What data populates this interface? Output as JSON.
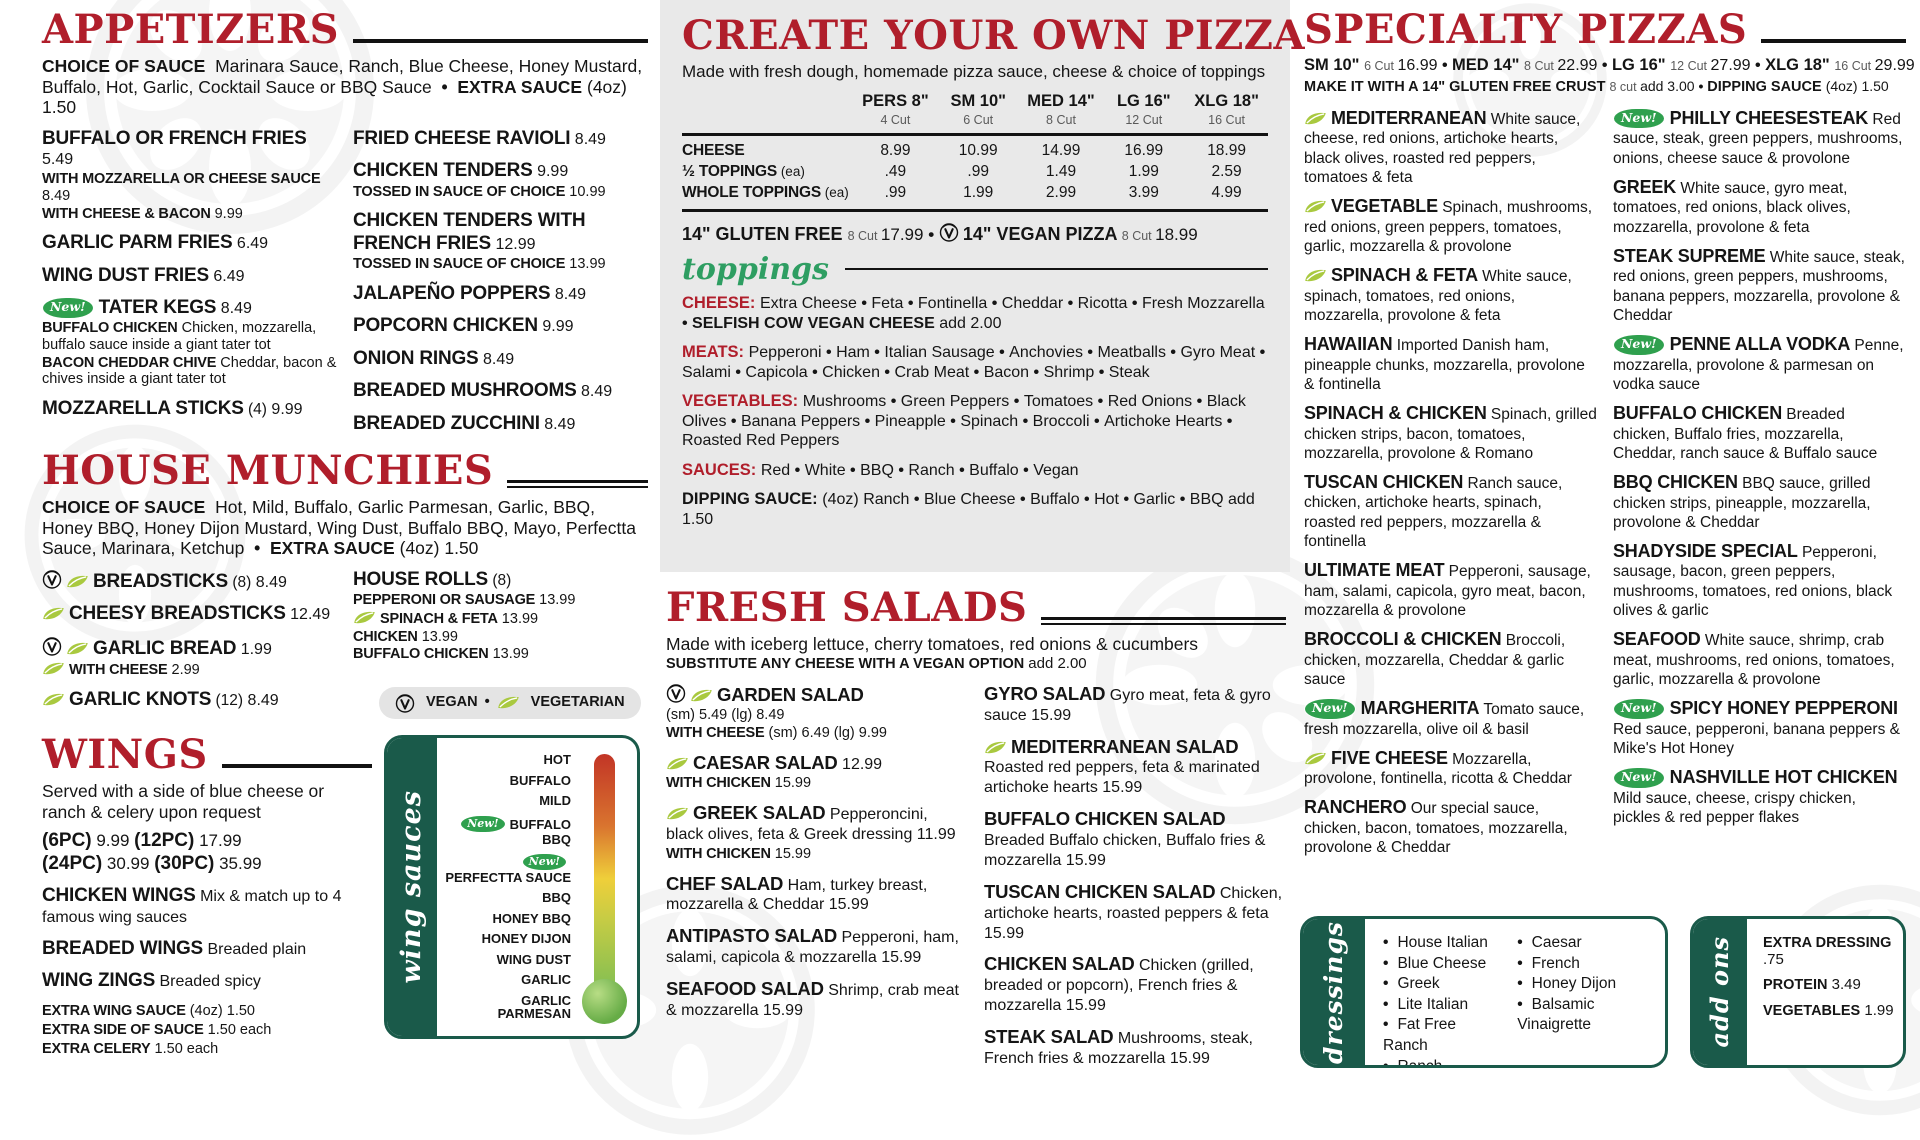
{
  "glyphs": {
    "bullet": "•"
  },
  "colors": {
    "accent_red": "#B01E2B",
    "dark_green": "#1A5A4A",
    "new_badge_green": "#2FA04E",
    "leaf_green": "#A9C93F",
    "panel_gray": "#E9E9E9"
  },
  "badges": {
    "new": "New!"
  },
  "legend": {
    "vegan": "VEGAN",
    "vegetarian": "VEGETARIAN"
  },
  "appetizers": {
    "title": "APPETIZERS",
    "note": {
      "label": "CHOICE OF SAUCE",
      "text": "Marinara Sauce, Ranch, Blue Cheese, Honey Mustard, Buffalo, Hot, Garlic, Cocktail Sauce or BBQ Sauce",
      "extra_label": "EXTRA SAUCE",
      "extra_text": "(4oz) 1.50"
    },
    "col1": [
      {
        "name": "BUFFALO OR FRENCH FRIES",
        "price": "5.49",
        "subs": [
          {
            "label": "WITH MOZZARELLA OR CHEESE SAUCE",
            "text": "8.49"
          },
          {
            "label": "WITH CHEESE & BACON",
            "text": "9.99"
          }
        ]
      },
      {
        "name": "GARLIC PARM FRIES",
        "price": "6.49"
      },
      {
        "name": "WING DUST FRIES",
        "price": "6.49"
      },
      {
        "badges": [
          "new"
        ],
        "name": "TATER KEGS",
        "price": "8.49",
        "subs": [
          {
            "label": "BUFFALO CHICKEN",
            "text": "Chicken, mozzarella, buffalo sauce inside a giant tater tot"
          },
          {
            "label": "BACON CHEDDAR CHIVE",
            "text": "Cheddar, bacon & chives inside a giant tater tot"
          }
        ]
      },
      {
        "name": "MOZZARELLA STICKS",
        "qty": "(4)",
        "price": "9.99"
      }
    ],
    "col2": [
      {
        "name": "FRIED CHEESE RAVIOLI",
        "price": "8.49"
      },
      {
        "name": "CHICKEN TENDERS",
        "price": "9.99",
        "subs": [
          {
            "label": "TOSSED IN SAUCE OF CHOICE",
            "text": "10.99"
          }
        ]
      },
      {
        "name": "CHICKEN TENDERS WITH FRENCH FRIES",
        "price": "12.99",
        "subs": [
          {
            "label": "TOSSED IN SAUCE OF CHOICE",
            "text": "13.99"
          }
        ]
      },
      {
        "name": "JALAPEÑO POPPERS",
        "price": "8.49"
      },
      {
        "name": "POPCORN CHICKEN",
        "price": "9.99"
      },
      {
        "name": "ONION RINGS",
        "price": "8.49"
      },
      {
        "name": "BREADED MUSHROOMS",
        "price": "8.49"
      },
      {
        "name": "BREADED ZUCCHINI",
        "price": "8.49"
      }
    ]
  },
  "house_munchies": {
    "title": "HOUSE MUNCHIES",
    "note": {
      "label": "CHOICE OF SAUCE",
      "text": "Hot, Mild, Buffalo, Garlic Parmesan, Garlic, BBQ, Honey BBQ, Honey Dijon Mustard, Wing Dust, Buffalo BBQ, Mayo, Perfectta Sauce, Marinara, Ketchup",
      "extra_label": "EXTRA SAUCE",
      "extra_text": "(4oz) 1.50"
    },
    "col1": [
      {
        "badges": [
          "vegan",
          "leaf"
        ],
        "name": "BREADSTICKS",
        "qty": "(8)",
        "price": "8.49"
      },
      {
        "badges": [
          "leaf"
        ],
        "name": "CHEESY BREADSTICKS",
        "price": "12.49"
      },
      {
        "badges": [
          "vegan",
          "leaf"
        ],
        "name": "GARLIC BREAD",
        "price": "1.99",
        "subs": [
          {
            "badges": [
              "leaf"
            ],
            "label": "WITH CHEESE",
            "text": "2.99"
          }
        ]
      },
      {
        "badges": [
          "leaf"
        ],
        "name": "GARLIC KNOTS",
        "qty": "(12)",
        "price": "8.49"
      }
    ],
    "col2": [
      {
        "name": "HOUSE ROLLS",
        "qty": "(8)",
        "subs": [
          {
            "label": "PEPPERONI OR SAUSAGE",
            "text": "13.99"
          },
          {
            "badges": [
              "leaf"
            ],
            "label": "SPINACH & FETA",
            "text": "13.99"
          },
          {
            "label": "CHICKEN",
            "text": "13.99"
          },
          {
            "label": "BUFFALO CHICKEN",
            "text": "13.99"
          }
        ]
      }
    ]
  },
  "wings": {
    "title": "WINGS",
    "note": "Served with a side of blue cheese or ranch & celery upon request",
    "pieces": [
      {
        "label": "(6PC)",
        "price": "9.99"
      },
      {
        "label": "(12PC)",
        "price": "17.99"
      },
      {
        "label": "(24PC)",
        "price": "30.99"
      },
      {
        "label": "(30PC)",
        "price": "35.99"
      }
    ],
    "items": [
      {
        "name": "CHICKEN WINGS",
        "desc": "Mix & match up to 4 famous wing sauces"
      },
      {
        "name": "BREADED WINGS",
        "desc": "Breaded plain"
      },
      {
        "name": "WING ZINGS",
        "desc": "Breaded spicy"
      }
    ],
    "extras": [
      {
        "label": "EXTRA WING SAUCE",
        "text": "(4oz) 1.50"
      },
      {
        "label": "EXTRA SIDE OF SAUCE",
        "text": "1.50 each"
      },
      {
        "label": "EXTRA CELERY",
        "text": "1.50 each"
      }
    ]
  },
  "wing_sauces": {
    "title": "wing sauces",
    "sauces": [
      {
        "name": "HOT"
      },
      {
        "name": "BUFFALO"
      },
      {
        "name": "MILD"
      },
      {
        "name": "BUFFALO BBQ",
        "new": true
      },
      {
        "name": "PERFECTTA SAUCE",
        "new": true
      },
      {
        "name": "BBQ"
      },
      {
        "name": "HONEY BBQ"
      },
      {
        "name": "HONEY DIJON"
      },
      {
        "name": "WING DUST"
      },
      {
        "name": "GARLIC"
      },
      {
        "name": "GARLIC PARMESAN"
      }
    ]
  },
  "pizza": {
    "title": "CREATE YOUR OWN PIZZA",
    "subtitle": "Made with fresh dough, homemade pizza sauce, cheese & choice of toppings",
    "table": {
      "columns": [
        {
          "size": "PERS 8\"",
          "cut": "4 Cut"
        },
        {
          "size": "SM 10\"",
          "cut": "6 Cut"
        },
        {
          "size": "MED 14\"",
          "cut": "8 Cut"
        },
        {
          "size": "LG 16\"",
          "cut": "12 Cut"
        },
        {
          "size": "XLG 18\"",
          "cut": "16 Cut"
        }
      ],
      "rows": [
        {
          "label": "CHEESE",
          "suffix": "",
          "values": [
            "8.99",
            "10.99",
            "14.99",
            "16.99",
            "18.99"
          ]
        },
        {
          "label": "½ TOPPINGS",
          "suffix": "(ea)",
          "values": [
            ".49",
            ".99",
            "1.49",
            "1.99",
            "2.59"
          ]
        },
        {
          "label": "WHOLE TOPPINGS",
          "suffix": "(ea)",
          "values": [
            ".99",
            "1.99",
            "2.99",
            "3.99",
            "4.99"
          ]
        }
      ]
    },
    "special_line": [
      {
        "name": "14\" GLUTEN FREE",
        "cut": "8 Cut",
        "price": "17.99"
      },
      {
        "vegan": true,
        "name": "14\" VEGAN PIZZA",
        "cut": "8 Cut",
        "price": "18.99"
      }
    ],
    "toppings_title": "toppings",
    "topping_groups": [
      {
        "label": "CHEESE:",
        "color": "red",
        "items": [
          {
            "t": "Extra Cheese"
          },
          {
            "t": "Feta"
          },
          {
            "t": "Fontinella"
          },
          {
            "t": "Cheddar"
          },
          {
            "t": "Ricotta"
          },
          {
            "t": "Fresh Mozzarella"
          },
          {
            "t": "SELFISH COW VEGAN CHEESE",
            "b": true,
            "suffix": "add 2.00"
          }
        ]
      },
      {
        "label": "MEATS:",
        "color": "red",
        "items": [
          {
            "t": "Pepperoni"
          },
          {
            "t": "Ham"
          },
          {
            "t": "Italian Sausage"
          },
          {
            "t": "Anchovies"
          },
          {
            "t": "Meatballs"
          },
          {
            "t": "Gyro Meat"
          },
          {
            "t": "Salami"
          },
          {
            "t": "Capicola"
          },
          {
            "t": "Chicken"
          },
          {
            "t": "Crab Meat"
          },
          {
            "t": "Bacon"
          },
          {
            "t": "Shrimp"
          },
          {
            "t": "Steak"
          }
        ]
      },
      {
        "label": "VEGETABLES:",
        "color": "red",
        "items": [
          {
            "t": "Mushrooms"
          },
          {
            "t": "Green Peppers"
          },
          {
            "t": "Tomatoes"
          },
          {
            "t": "Red Onions"
          },
          {
            "t": "Black Olives"
          },
          {
            "t": "Banana Peppers"
          },
          {
            "t": "Pineapple"
          },
          {
            "t": "Spinach"
          },
          {
            "t": "Broccoli"
          },
          {
            "t": "Artichoke Hearts"
          },
          {
            "t": "Roasted Red Peppers"
          }
        ]
      },
      {
        "label": "SAUCES:",
        "color": "red",
        "items": [
          {
            "t": "Red"
          },
          {
            "t": "White"
          },
          {
            "t": "BBQ"
          },
          {
            "t": "Ranch"
          },
          {
            "t": "Buffalo"
          },
          {
            "t": "Vegan"
          }
        ]
      },
      {
        "label": "DIPPING SAUCE:",
        "color": "black",
        "prefix": "(4oz)",
        "items": [
          {
            "t": "Ranch"
          },
          {
            "t": "Blue Cheese"
          },
          {
            "t": "Buffalo"
          },
          {
            "t": "Hot"
          },
          {
            "t": "Garlic"
          },
          {
            "t": "BBQ",
            "suffix": "add 1.50"
          }
        ]
      }
    ]
  },
  "salads": {
    "title": "FRESH SALADS",
    "subtitle": "Made with iceberg lettuce, cherry tomatoes, red onions & cucumbers",
    "note": {
      "label": "SUBSTITUTE ANY CHEESE WITH A VEGAN OPTION",
      "text": "add 2.00"
    },
    "col1": [
      {
        "badges": [
          "vegan",
          "leaf"
        ],
        "name": "GARDEN SALAD",
        "subs": [
          {
            "label": "",
            "text": "(sm) 5.49  (lg) 8.49"
          },
          {
            "label": "WITH CHEESE",
            "text": "(sm) 6.49  (lg) 9.99"
          }
        ]
      },
      {
        "badges": [
          "leaf"
        ],
        "name": "CAESAR SALAD",
        "price": "12.99",
        "subs": [
          {
            "label": "WITH CHICKEN",
            "text": "15.99"
          }
        ]
      },
      {
        "badges": [
          "leaf"
        ],
        "name": "GREEK SALAD",
        "desc": "Pepperoncini, black olives, feta & Greek dressing 11.99",
        "subs": [
          {
            "label": "WITH CHICKEN",
            "text": "15.99"
          }
        ]
      },
      {
        "name": "CHEF SALAD",
        "desc": "Ham, turkey breast, mozzarella & Cheddar 15.99"
      },
      {
        "name": "ANTIPASTO SALAD",
        "desc": "Pepperoni, ham, salami, capicola & mozzarella 15.99"
      },
      {
        "name": "SEAFOOD SALAD",
        "desc": "Shrimp, crab meat & mozzarella 15.99"
      }
    ],
    "col2": [
      {
        "name": "GYRO SALAD",
        "desc": "Gyro meat, feta & gyro sauce 15.99"
      },
      {
        "badges": [
          "leaf"
        ],
        "name": "MEDITERRANEAN SALAD",
        "desc": "Roasted red peppers, feta & marinated artichoke hearts 15.99"
      },
      {
        "name": "BUFFALO CHICKEN SALAD",
        "desc": "Breaded Buffalo chicken, Buffalo fries & mozzarella 15.99"
      },
      {
        "name": "TUSCAN CHICKEN SALAD",
        "desc": "Chicken, artichoke hearts, roasted peppers & feta 15.99"
      },
      {
        "name": "CHICKEN SALAD",
        "desc": "Chicken (grilled, breaded or popcorn), French fries & mozzarella 15.99"
      },
      {
        "name": "STEAK SALAD",
        "desc": "Mushrooms, steak, French fries & mozzarella 15.99"
      }
    ]
  },
  "specialty": {
    "title": "SPECIALTY PIZZAS",
    "sizes": [
      {
        "size": "SM 10\"",
        "cut": "6 Cut",
        "price": "16.99"
      },
      {
        "size": "MED 14\"",
        "cut": "8 Cut",
        "price": "22.99"
      },
      {
        "size": "LG 16\"",
        "cut": "12 Cut",
        "price": "27.99"
      },
      {
        "size": "XLG 18\"",
        "cut": "16 Cut",
        "price": "29.99"
      }
    ],
    "note": [
      {
        "b": "MAKE IT WITH A 14\" GLUTEN FREE CRUST",
        "l": "8 cut",
        "r": "add 3.00"
      },
      {
        "b": "DIPPING SAUCE",
        "r": "(4oz) 1.50"
      }
    ],
    "col1": [
      {
        "badges": [
          "leaf"
        ],
        "name": "MEDITERRANEAN",
        "desc": "White sauce, cheese, red onions, artichoke hearts, black olives, roasted red peppers, tomatoes & feta"
      },
      {
        "badges": [
          "leaf"
        ],
        "name": "VEGETABLE",
        "desc": "Spinach, mushrooms, red onions, green peppers, tomatoes, garlic, mozzarella & provolone"
      },
      {
        "badges": [
          "leaf"
        ],
        "name": "SPINACH & FETA",
        "desc": "White sauce, spinach, tomatoes, red onions, mozzarella, provolone & feta"
      },
      {
        "name": "HAWAIIAN",
        "desc": "Imported Danish ham, pineapple chunks, mozzarella, provolone & fontinella"
      },
      {
        "name": "SPINACH & CHICKEN",
        "desc": "Spinach, grilled chicken strips, bacon, tomatoes, mozzarella, provolone & Romano"
      },
      {
        "name": "TUSCAN CHICKEN",
        "desc": "Ranch sauce, chicken, artichoke hearts, spinach, roasted red peppers, mozzarella & fontinella"
      },
      {
        "name": "ULTIMATE MEAT",
        "desc": "Pepperoni, sausage, ham, salami, capicola, gyro meat, bacon, mozzarella & provolone"
      },
      {
        "name": "BROCCOLI & CHICKEN",
        "desc": "Broccoli, chicken, mozzarella, Cheddar & garlic sauce"
      },
      {
        "badges": [
          "new"
        ],
        "name": "MARGHERITA",
        "desc": "Tomato sauce, fresh mozzarella, olive oil & basil"
      },
      {
        "badges": [
          "leaf"
        ],
        "name": "FIVE CHEESE",
        "desc": "Mozzarella, provolone, fontinella, ricotta & Cheddar"
      },
      {
        "name": "RANCHERO",
        "desc": "Our special sauce, chicken, bacon, tomatoes, mozzarella, provolone & Cheddar"
      }
    ],
    "col2": [
      {
        "badges": [
          "new"
        ],
        "name": "PHILLY CHEESESTEAK",
        "desc": "Red sauce, steak, green peppers, mushrooms, onions, cheese sauce & provolone"
      },
      {
        "name": "GREEK",
        "desc": "White sauce, gyro meat, tomatoes, red onions, black olives, mozzarella, provolone & feta"
      },
      {
        "name": "STEAK SUPREME",
        "desc": "White sauce, steak, red onions, green peppers, mushrooms, banana peppers, mozzarella, provolone & Cheddar"
      },
      {
        "badges": [
          "new"
        ],
        "name": "PENNE ALLA VODKA",
        "desc": "Penne, mozzarella, provolone & parmesan on vodka sauce"
      },
      {
        "name": "BUFFALO CHICKEN",
        "desc": "Breaded chicken, Buffalo fries, mozzarella, Cheddar, ranch sauce & Buffalo sauce"
      },
      {
        "name": "BBQ CHICKEN",
        "desc": "BBQ sauce, grilled chicken strips, pineapple, mozzarella, provolone & Cheddar"
      },
      {
        "name": "SHADYSIDE SPECIAL",
        "desc": "Pepperoni, sausage, bacon, green peppers, mushrooms, tomatoes, red onions, black olives & garlic"
      },
      {
        "name": "SEAFOOD",
        "desc": "White sauce, shrimp, crab meat, mushrooms, red onions, tomatoes, garlic, mozzarella & provolone"
      },
      {
        "badges": [
          "new"
        ],
        "name": "SPICY HONEY PEPPERONI",
        "desc": "Red sauce, pepperoni, banana peppers & Mike's Hot Honey"
      },
      {
        "badges": [
          "new"
        ],
        "name": "NASHVILLE HOT CHICKEN",
        "desc": "Mild sauce, cheese, crispy chicken, pickles & red pepper flakes"
      }
    ]
  },
  "dressings": {
    "title": "dressings",
    "col1": [
      "House Italian",
      "Blue Cheese",
      "Greek",
      "Lite Italian",
      "Fat Free Ranch",
      "Ranch"
    ],
    "col2": [
      "Caesar",
      "French",
      "Honey Dijon",
      "Balsamic Vinaigrette"
    ]
  },
  "add_ons": {
    "title": "add ons",
    "items": [
      {
        "label": "EXTRA DRESSING",
        "price": ".75"
      },
      {
        "label": "PROTEIN",
        "price": "3.49"
      },
      {
        "label": "VEGETABLES",
        "price": "1.99"
      }
    ]
  }
}
